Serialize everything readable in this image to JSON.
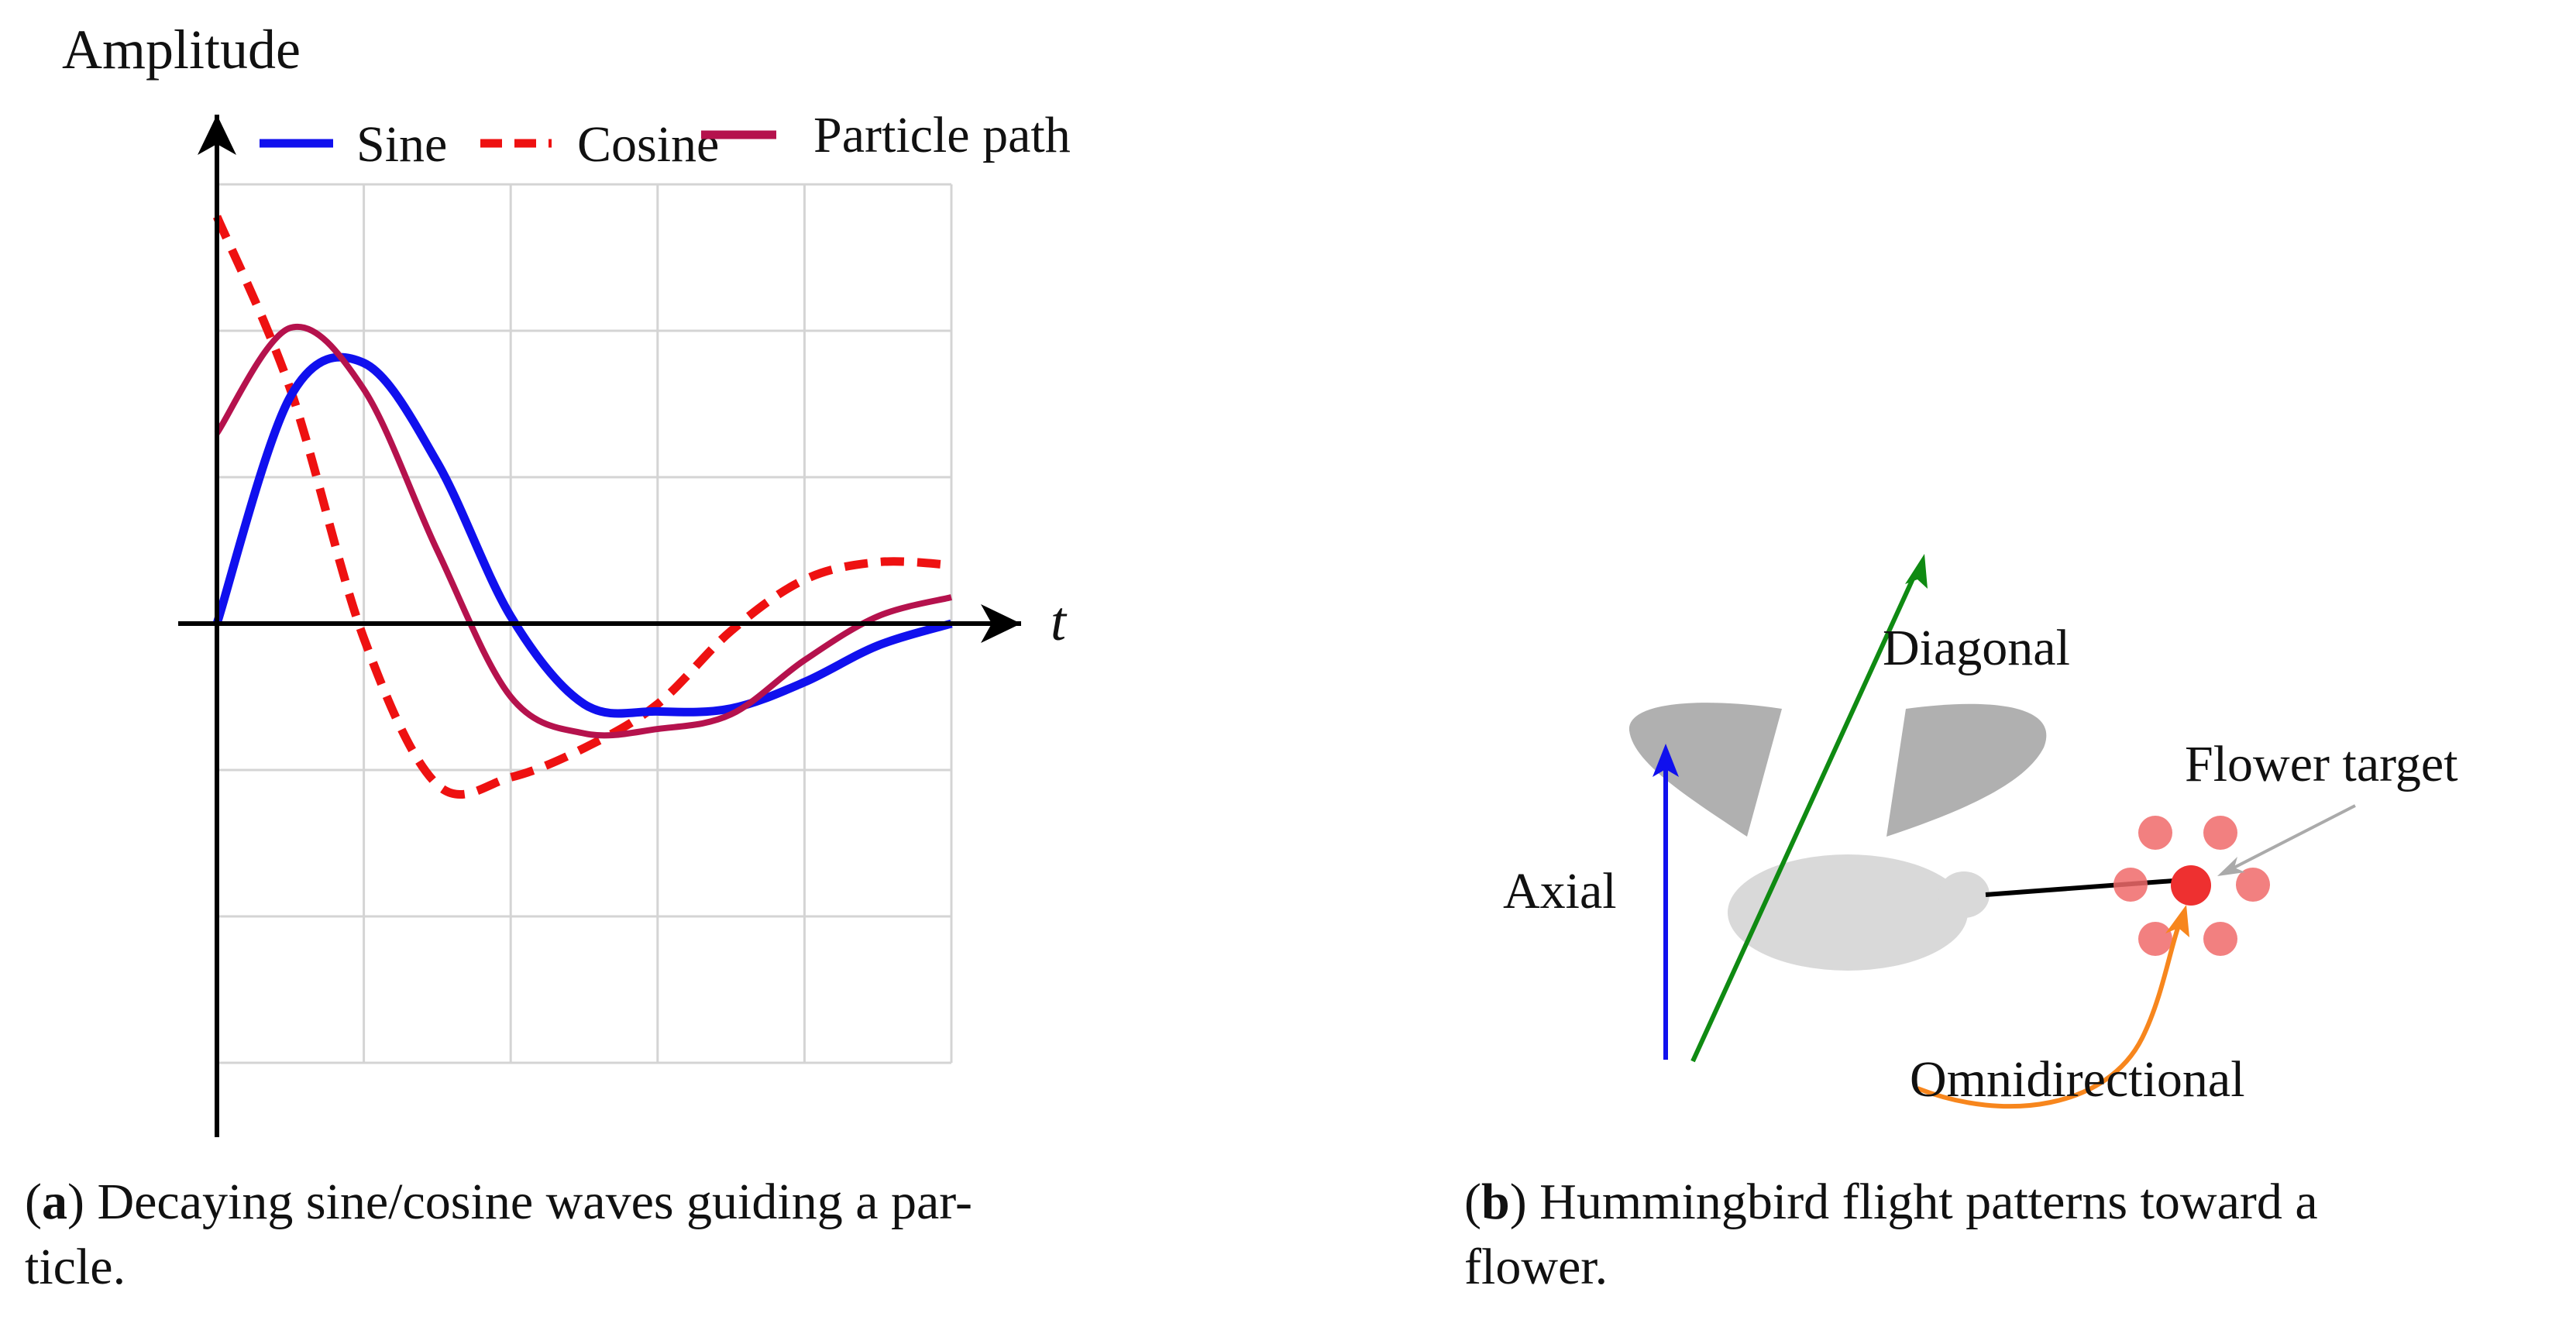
{
  "panel_a": {
    "y_axis_label": "Amplitude",
    "x_axis_label": "t",
    "legend": [
      "Sine",
      "Cosine",
      "Particle path"
    ],
    "caption_letter": "a",
    "caption_line1": ") Decaying sine/cosine waves guiding a par-",
    "caption_line2": "ticle.",
    "chart_data": {
      "type": "line",
      "title": "",
      "xlabel": "t",
      "ylabel": "Amplitude",
      "xlim": [
        0,
        5
      ],
      "ylim": [
        -3,
        3
      ],
      "grid": true,
      "legend_position": "top",
      "colors": {
        "Sine": "#1010ee",
        "Cosine": "#ee1111",
        "Particle path": "#b5124d"
      },
      "series": [
        {
          "name": "Sine",
          "style": "solid",
          "x": [
            0,
            0.5,
            1,
            1.5,
            2,
            2.5,
            3,
            3.5,
            4,
            4.5,
            5
          ],
          "y": [
            0,
            1.55,
            1.78,
            1.1,
            0.05,
            -0.55,
            -0.6,
            -0.58,
            -0.4,
            -0.15,
            0
          ]
        },
        {
          "name": "Cosine",
          "style": "dashed",
          "x": [
            0,
            0.5,
            1,
            1.5,
            2,
            2.5,
            3,
            3.5,
            4,
            4.5,
            5
          ],
          "y": [
            2.78,
            1.6,
            -0.1,
            -1.1,
            -1.05,
            -0.85,
            -0.55,
            -0.05,
            0.3,
            0.42,
            0.4
          ]
        },
        {
          "name": "Particle path",
          "style": "solid",
          "x": [
            0,
            0.5,
            1,
            1.5,
            2,
            2.5,
            3,
            3.5,
            4,
            4.5,
            5
          ],
          "y": [
            1.3,
            2.02,
            1.6,
            0.5,
            -0.5,
            -0.75,
            -0.72,
            -0.62,
            -0.25,
            0.05,
            0.18
          ]
        }
      ]
    }
  },
  "panel_b": {
    "labels": {
      "diagonal": "Diagonal",
      "axial": "Axial",
      "flower_target": "Flower target",
      "omnidirectional": "Omnidirectional"
    },
    "colors": {
      "axial": "#1010ee",
      "diagonal": "#0f8a12",
      "omnidirectional": "#f7861d",
      "flower": "#f06a6a",
      "body": "#d9d9d9",
      "wing": "#b0b0b0"
    },
    "caption_letter": "b",
    "caption_line1": ") Hummingbird flight patterns toward a",
    "caption_line2": "flower."
  }
}
